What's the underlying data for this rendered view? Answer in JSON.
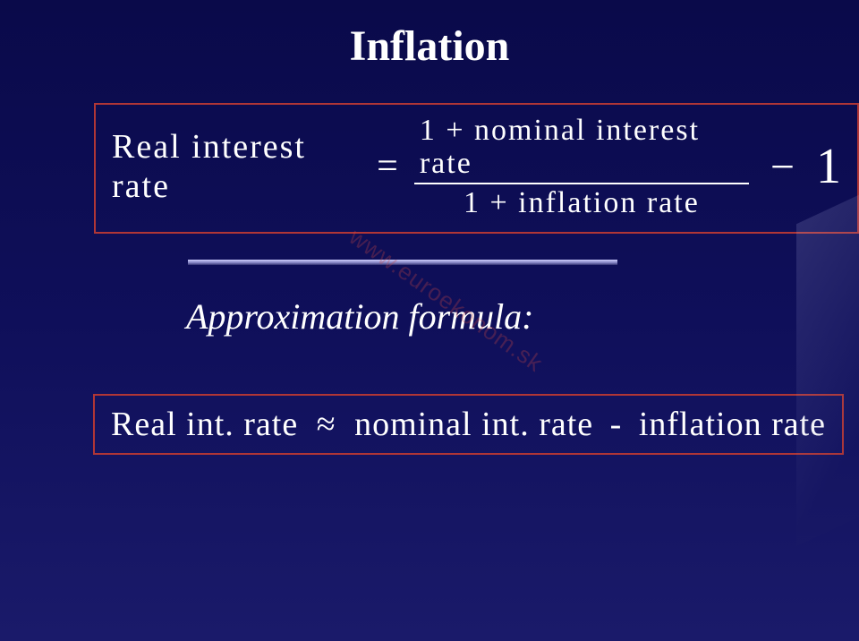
{
  "title": "Inflation",
  "formula1": {
    "lhs": "Real  interest  rate",
    "equals": "=",
    "numerator": "1 + nominal  interest  rate",
    "denominator": "1 + inflation  rate",
    "minus": "−",
    "one": "1"
  },
  "approx_label": "Approximation formula:",
  "formula2": {
    "lhs": "Real int. rate",
    "approx": "≈",
    "mid": "nominal int. rate",
    "minus": "-",
    "rhs": "inflation rate"
  },
  "watermark": "www.euroekonom.sk",
  "colors": {
    "text": "#ffffff",
    "border": "#b03636",
    "bg_top": "#0a0a4a",
    "bg_bottom": "#1a1a6a"
  }
}
